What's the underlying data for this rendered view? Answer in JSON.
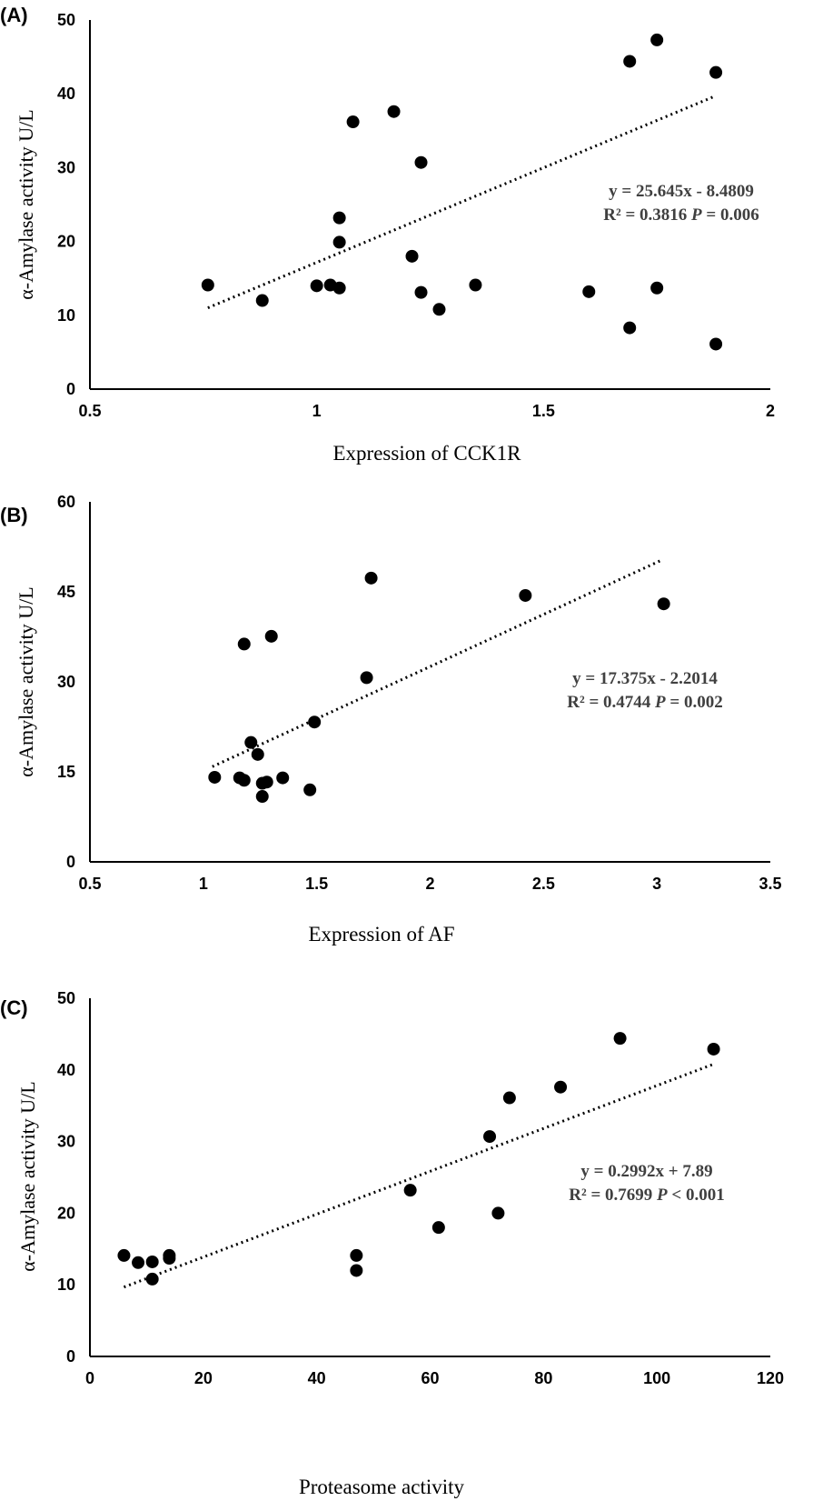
{
  "chart_data": [
    {
      "type": "scatter",
      "panel_label": "(A)",
      "xlabel": "Expression of CCK1R",
      "ylabel": "α-Amylase activity U/L",
      "xlim": [
        0.5,
        2
      ],
      "ylim": [
        0,
        50
      ],
      "x_ticks": [
        "0.5",
        "1",
        "1.5",
        "2"
      ],
      "y_ticks": [
        "0",
        "10",
        "20",
        "30",
        "40",
        "50"
      ],
      "x_tick_values": [
        0.5,
        1,
        1.5,
        2
      ],
      "y_tick_values": [
        0,
        10,
        20,
        30,
        40,
        50
      ],
      "equation": "y = 25.645x - 8.4809",
      "r2_text": "R² = 0.3816",
      "p_label": "P",
      "p_text": " = 0.006",
      "trendline": {
        "slope": 25.645,
        "intercept": -8.4809,
        "x_range": [
          0.76,
          1.88
        ]
      },
      "points": [
        [
          0.76,
          14.1
        ],
        [
          0.88,
          12.0
        ],
        [
          1.0,
          14.0
        ],
        [
          1.03,
          14.1
        ],
        [
          1.05,
          13.7
        ],
        [
          1.05,
          19.9
        ],
        [
          1.05,
          23.2
        ],
        [
          1.08,
          36.2
        ],
        [
          1.17,
          37.6
        ],
        [
          1.21,
          18.0
        ],
        [
          1.23,
          30.7
        ],
        [
          1.23,
          13.1
        ],
        [
          1.27,
          10.8
        ],
        [
          1.35,
          14.1
        ],
        [
          1.6,
          13.2
        ],
        [
          1.69,
          44.4
        ],
        [
          1.69,
          8.3
        ],
        [
          1.75,
          47.3
        ],
        [
          1.75,
          13.7
        ],
        [
          1.88,
          42.9
        ],
        [
          1.88,
          6.1
        ]
      ]
    },
    {
      "type": "scatter",
      "panel_label": "(B)",
      "xlabel": "Expression of AF",
      "ylabel": "α-Amylase activity U/L",
      "xlim": [
        0.5,
        3.5
      ],
      "ylim": [
        0,
        60
      ],
      "x_ticks": [
        "0.5",
        "1",
        "1.5",
        "2",
        "2.5",
        "3",
        "3.5"
      ],
      "y_ticks": [
        "0",
        "15",
        "30",
        "45",
        "60"
      ],
      "x_tick_values": [
        0.5,
        1,
        1.5,
        2,
        2.5,
        3,
        3.5
      ],
      "y_tick_values": [
        0,
        15,
        30,
        45,
        60
      ],
      "equation": "y = 17.375x - 2.2014",
      "r2_text": "R² = 0.4744",
      "p_label": "P",
      "p_text": " = 0.002",
      "trendline": {
        "slope": 17.375,
        "intercept": -2.2014,
        "x_range": [
          1.04,
          3.02
        ]
      },
      "points": [
        [
          1.05,
          14.1
        ],
        [
          1.16,
          14.0
        ],
        [
          1.18,
          13.6
        ],
        [
          1.18,
          36.3
        ],
        [
          1.21,
          19.9
        ],
        [
          1.24,
          17.9
        ],
        [
          1.26,
          10.9
        ],
        [
          1.26,
          13.1
        ],
        [
          1.28,
          13.3
        ],
        [
          1.3,
          37.6
        ],
        [
          1.35,
          14.0
        ],
        [
          1.47,
          12.0
        ],
        [
          1.49,
          23.3
        ],
        [
          1.72,
          30.7
        ],
        [
          1.74,
          47.3
        ],
        [
          2.42,
          44.4
        ],
        [
          3.03,
          43.0
        ]
      ]
    },
    {
      "type": "scatter",
      "panel_label": "(C)",
      "xlabel": "Proteasome activity",
      "ylabel": "α-Amylase activity U/L",
      "xlim": [
        0,
        120
      ],
      "ylim": [
        0,
        50
      ],
      "x_ticks": [
        "0",
        "20",
        "40",
        "60",
        "80",
        "100",
        "120"
      ],
      "y_ticks": [
        "0",
        "10",
        "20",
        "30",
        "40",
        "50"
      ],
      "x_tick_values": [
        0,
        20,
        40,
        60,
        80,
        100,
        120
      ],
      "y_tick_values": [
        0,
        10,
        20,
        30,
        40,
        50
      ],
      "equation": "y = 0.2992x + 7.89",
      "r2_text": "R² = 0.7699",
      "p_label": "P",
      "p_text": " < 0.001",
      "trendline": {
        "slope": 0.2992,
        "intercept": 7.89,
        "x_range": [
          6,
          110
        ]
      },
      "points": [
        [
          6,
          14.1
        ],
        [
          8.5,
          13.1
        ],
        [
          11,
          13.2
        ],
        [
          11,
          10.8
        ],
        [
          14,
          13.7
        ],
        [
          14,
          14.1
        ],
        [
          47,
          14.1
        ],
        [
          47,
          12.0
        ],
        [
          56.5,
          23.2
        ],
        [
          61.5,
          18.0
        ],
        [
          70.5,
          30.7
        ],
        [
          72,
          20.0
        ],
        [
          74,
          36.1
        ],
        [
          83,
          37.6
        ],
        [
          93.5,
          44.4
        ],
        [
          110,
          42.9
        ]
      ]
    }
  ]
}
